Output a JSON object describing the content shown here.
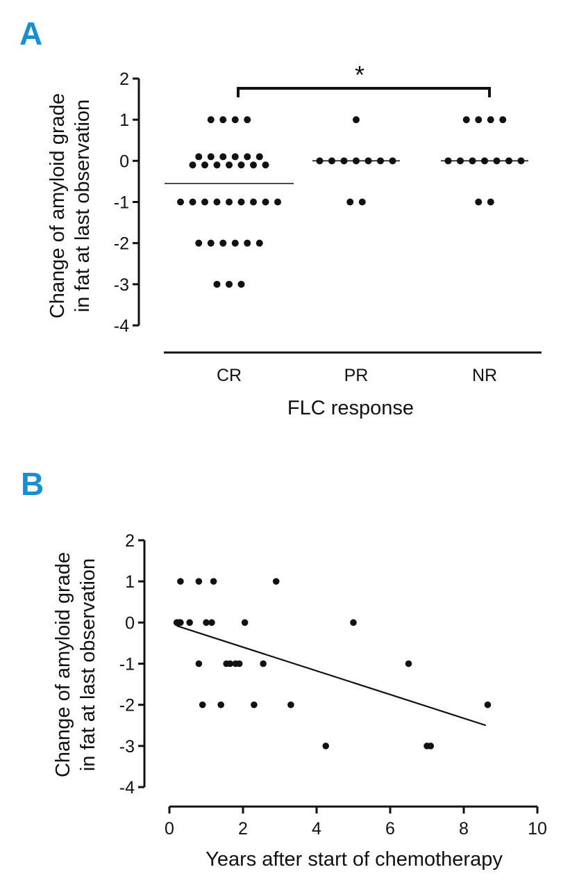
{
  "chart_data": [
    {
      "panel": "A",
      "type": "scatter",
      "subtype": "dot-plot",
      "xlabel": "FLC response",
      "ylabel_lines": [
        "Change of amyloid grade",
        "in fat at last observation"
      ],
      "categories": [
        "CR",
        "PR",
        "NR"
      ],
      "ylim": [
        -4,
        2
      ],
      "yticks": [
        "2",
        "1",
        "0",
        "-1",
        "-2",
        "-3",
        "-4"
      ],
      "groups": [
        {
          "name": "CR",
          "values": [
            1,
            1,
            1,
            1,
            0.1,
            0.1,
            0.1,
            0.1,
            0.1,
            0.1,
            -0.1,
            -0.1,
            -0.1,
            -0.1,
            -0.1,
            -0.1,
            -0.1,
            -1,
            -1,
            -1,
            -1,
            -1,
            -1,
            -1,
            -1,
            -1,
            -2,
            -2,
            -2,
            -2,
            -2,
            -2,
            -3,
            -3,
            -3
          ],
          "median": -0.55
        },
        {
          "name": "PR",
          "values": [
            1,
            0,
            0,
            0,
            0,
            0,
            0,
            0,
            -1,
            -1
          ],
          "median": 0
        },
        {
          "name": "NR",
          "values": [
            1,
            1,
            1,
            1,
            0,
            0,
            0,
            0,
            0,
            0,
            0,
            -1,
            -1
          ],
          "median": 0
        }
      ],
      "significance": {
        "from": "CR",
        "to": "NR",
        "label": "*"
      }
    },
    {
      "panel": "B",
      "type": "scatter",
      "xlabel": "Years after start of chemotherapy",
      "ylabel_lines": [
        "Change of amyloid grade",
        "in fat at last observation"
      ],
      "xlim": [
        0,
        10
      ],
      "ylim": [
        -4,
        2
      ],
      "xticks": [
        "0",
        "2",
        "4",
        "6",
        "8",
        "10"
      ],
      "yticks": [
        "2",
        "1",
        "0",
        "-1",
        "-2",
        "-3",
        "-4"
      ],
      "points": [
        {
          "x": 0.2,
          "y": 0
        },
        {
          "x": 0.25,
          "y": 0
        },
        {
          "x": 0.3,
          "y": 1
        },
        {
          "x": 0.3,
          "y": 0
        },
        {
          "x": 0.55,
          "y": 0
        },
        {
          "x": 0.8,
          "y": 1
        },
        {
          "x": 0.8,
          "y": -1
        },
        {
          "x": 0.9,
          "y": -2
        },
        {
          "x": 1.0,
          "y": 0
        },
        {
          "x": 1.15,
          "y": 0
        },
        {
          "x": 1.2,
          "y": 1
        },
        {
          "x": 1.4,
          "y": -2
        },
        {
          "x": 1.55,
          "y": -1
        },
        {
          "x": 1.65,
          "y": -1
        },
        {
          "x": 1.8,
          "y": -1
        },
        {
          "x": 1.9,
          "y": -1
        },
        {
          "x": 2.05,
          "y": 0
        },
        {
          "x": 2.3,
          "y": -2
        },
        {
          "x": 2.55,
          "y": -1
        },
        {
          "x": 2.9,
          "y": 1
        },
        {
          "x": 3.3,
          "y": -2
        },
        {
          "x": 4.25,
          "y": -3
        },
        {
          "x": 5.0,
          "y": 0
        },
        {
          "x": 6.5,
          "y": -1
        },
        {
          "x": 7.0,
          "y": -3
        },
        {
          "x": 7.1,
          "y": -3
        },
        {
          "x": 8.65,
          "y": -2
        }
      ],
      "regression": {
        "x": [
          0.2,
          8.6
        ],
        "y": [
          -0.08,
          -2.5
        ]
      }
    }
  ],
  "panels": {
    "a": {
      "letter": "A",
      "xlabel": "FLC response",
      "ylabel_line1": "Change of amyloid grade",
      "ylabel_line2": "in fat at last observation",
      "star": "*"
    },
    "b": {
      "letter": "B",
      "xlabel": "Years after start of chemotherapy",
      "ylabel_line1": "Change of amyloid grade",
      "ylabel_line2": "in fat at last observation"
    }
  }
}
